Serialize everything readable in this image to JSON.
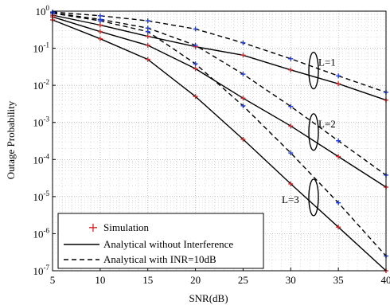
{
  "chart_data": {
    "type": "line",
    "title": "",
    "xlabel": "SNR(dB)",
    "ylabel": "Outage Probability",
    "xlim": [
      5,
      40
    ],
    "ylim": [
      1e-07,
      1
    ],
    "y_scale": "log",
    "grid": true,
    "x_ticks": [
      5,
      10,
      15,
      20,
      25,
      30,
      35,
      40
    ],
    "x_tick_labels": [
      "5",
      "10",
      "15",
      "20",
      "25",
      "30",
      "35",
      "40"
    ],
    "y_ticks": [
      1,
      0.1,
      0.01,
      0.001,
      0.0001,
      1e-05,
      1e-06,
      1e-07
    ],
    "y_tick_labels": [
      {
        "base": "10",
        "exp": "0"
      },
      {
        "base": "10",
        "exp": "-1"
      },
      {
        "base": "10",
        "exp": "-2"
      },
      {
        "base": "10",
        "exp": "-3"
      },
      {
        "base": "10",
        "exp": "-4"
      },
      {
        "base": "10",
        "exp": "-5"
      },
      {
        "base": "10",
        "exp": "-6"
      },
      {
        "base": "10",
        "exp": "-7"
      }
    ],
    "legend": {
      "placement": "bottom-left",
      "entries": [
        {
          "label": "Simulation",
          "style": "marker"
        },
        {
          "label": "Analytical without Interference",
          "style": "solid"
        },
        {
          "label": "Analytical with INR=10dB",
          "style": "dashed"
        }
      ]
    },
    "annotations": [
      {
        "text": "L=1",
        "x": 32.4,
        "y": 0.025
      },
      {
        "text": "L=2",
        "x": 32.4,
        "y": 0.00055
      },
      {
        "text": "L=3",
        "x": 32.4,
        "y": 9.5e-06
      }
    ],
    "x": [
      5,
      10,
      15,
      20,
      25,
      30,
      35,
      40
    ],
    "series": [
      {
        "group": "L=1",
        "style": "solid",
        "marker": "#d62728",
        "values": [
          0.78,
          0.42,
          0.21,
          0.11,
          0.065,
          0.026,
          0.011,
          0.004
        ]
      },
      {
        "group": "L=1",
        "style": "dashed",
        "marker": "#1f3fe0",
        "values": [
          0.95,
          0.75,
          0.55,
          0.33,
          0.14,
          0.052,
          0.018,
          0.0065
        ]
      },
      {
        "group": "L=2",
        "style": "solid",
        "marker": "#d62728",
        "values": [
          0.7,
          0.28,
          0.12,
          0.028,
          0.0045,
          0.0008,
          0.00012,
          1.8e-05
        ]
      },
      {
        "group": "L=2",
        "style": "dashed",
        "marker": "#1f3fe0",
        "values": [
          0.9,
          0.6,
          0.35,
          0.12,
          0.02,
          0.0027,
          0.00032,
          3.8e-05
        ]
      },
      {
        "group": "L=3",
        "style": "solid",
        "marker": "#d62728",
        "values": [
          0.58,
          0.18,
          0.05,
          0.005,
          0.00035,
          2.2e-05,
          1.5e-06,
          1e-07
        ]
      },
      {
        "group": "L=3",
        "style": "dashed",
        "marker": "#1f3fe0",
        "values": [
          0.88,
          0.55,
          0.28,
          0.038,
          0.0028,
          0.00015,
          6.8e-06,
          2.5e-07
        ]
      }
    ]
  }
}
